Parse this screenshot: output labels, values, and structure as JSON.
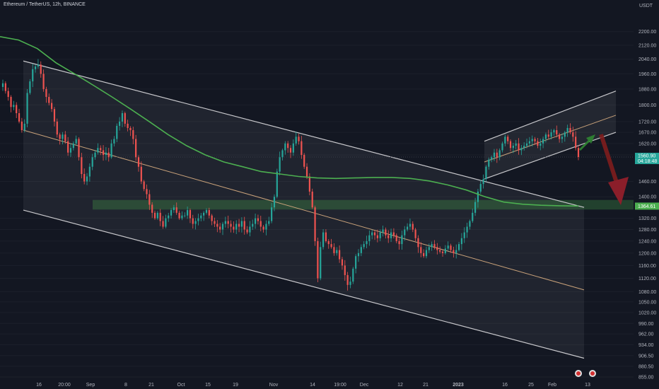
{
  "header": {
    "symbol": "Ethereum / TetherUS, 12h, BINANCE"
  },
  "currency_label": "USDT",
  "chart_data": {
    "type": "candlestick",
    "title": "Ethereum / TetherUS, 12h, BINANCE",
    "y_scale": "log",
    "ylim": [
      855,
      2290
    ],
    "y_ticks": [
      "2200.00",
      "2120.00",
      "2040.00",
      "1960.00",
      "1880.00",
      "1800.00",
      "1720.00",
      "1670.00",
      "1620.00",
      "1570.00",
      "1460.00",
      "1400.00",
      "1320.00",
      "1280.00",
      "1240.00",
      "1200.00",
      "1160.00",
      "1120.00",
      "1080.00",
      "1050.00",
      "1020.00",
      "990.00",
      "962.00",
      "934.00",
      "906.50",
      "880.50",
      "855.00"
    ],
    "x_tick_labels": [
      "16",
      "20:00",
      "Sep",
      "8",
      "21",
      "Oct",
      "15",
      "19",
      "Nov",
      "14",
      "19:00",
      "Dec",
      "12",
      "21",
      "2023",
      "16",
      "25",
      "Feb",
      "13"
    ],
    "price_tags": [
      {
        "label": "1560.90",
        "sublabel": "04:18:48",
        "price": 1560.9,
        "color": "#26a69a"
      },
      {
        "label": "1364.61",
        "price": 1364.61,
        "color": "#4caf50"
      }
    ],
    "series": [
      {
        "name": "ETHUSDT 12h",
        "kind": "candles",
        "start": "2022-08-14",
        "closes": [
          1910,
          1870,
          1840,
          1790,
          1800,
          1760,
          1720,
          1680,
          1710,
          1860,
          1920,
          1985,
          2000,
          2010,
          1960,
          1880,
          1840,
          1810,
          1780,
          1720,
          1660,
          1640,
          1660,
          1630,
          1580,
          1600,
          1620,
          1640,
          1560,
          1490,
          1460,
          1480,
          1520,
          1560,
          1580,
          1600,
          1590,
          1570,
          1580,
          1560,
          1620,
          1640,
          1700,
          1720,
          1760,
          1710,
          1690,
          1680,
          1640,
          1560,
          1520,
          1460,
          1430,
          1410,
          1370,
          1340,
          1320,
          1340,
          1310,
          1290,
          1320,
          1330,
          1350,
          1360,
          1340,
          1320,
          1330,
          1330,
          1350,
          1320,
          1300,
          1310,
          1320,
          1330,
          1340,
          1350,
          1330,
          1310,
          1300,
          1290,
          1280,
          1300,
          1310,
          1300,
          1290,
          1280,
          1300,
          1290,
          1310,
          1280,
          1270,
          1290,
          1300,
          1320,
          1310,
          1290,
          1280,
          1300,
          1310,
          1360,
          1400,
          1500,
          1560,
          1590,
          1620,
          1600,
          1580,
          1620,
          1650,
          1630,
          1570,
          1520,
          1480,
          1420,
          1360,
          1240,
          1120,
          1220,
          1270,
          1240,
          1230,
          1220,
          1200,
          1210,
          1180,
          1160,
          1130,
          1100,
          1110,
          1150,
          1190,
          1200,
          1220,
          1230,
          1240,
          1260,
          1270,
          1260,
          1250,
          1270,
          1280,
          1260,
          1250,
          1270,
          1260,
          1240,
          1230,
          1260,
          1280,
          1290,
          1300,
          1280,
          1250,
          1220,
          1200,
          1190,
          1210,
          1220,
          1230,
          1220,
          1210,
          1205,
          1200,
          1215,
          1225,
          1210,
          1200,
          1210,
          1230,
          1250,
          1270,
          1290,
          1310,
          1340,
          1380,
          1420,
          1450,
          1470,
          1520,
          1550,
          1560,
          1580,
          1560,
          1590,
          1620,
          1650,
          1630,
          1600,
          1610,
          1620,
          1590,
          1600,
          1610,
          1620,
          1630,
          1640,
          1630,
          1610,
          1620,
          1640,
          1660,
          1650,
          1670,
          1680,
          1660,
          1640,
          1650,
          1670,
          1690,
          1670,
          1650,
          1600,
          1561
        ]
      },
      {
        "name": "Moving average",
        "kind": "line",
        "color": "#4caf50",
        "values": [
          2170,
          2150,
          2100,
          2020,
          1960,
          1900,
          1840,
          1780,
          1720,
          1660,
          1610,
          1570,
          1540,
          1520,
          1500,
          1490,
          1480,
          1474,
          1472,
          1474,
          1476,
          1476,
          1472,
          1462,
          1446,
          1426,
          1400,
          1380,
          1372,
          1368,
          1366,
          1365
        ]
      }
    ],
    "annotations": [
      {
        "kind": "descending channel",
        "top_start": 2030,
        "top_end": 1360,
        "mid_start": 1680,
        "mid_end": 1085,
        "bottom_start": 1350,
        "bottom_end": 900
      },
      {
        "kind": "ascending channel",
        "top_start": 1630,
        "top_end": 1870,
        "mid_start": 1540,
        "mid_end": 1750,
        "bottom_start": 1470,
        "bottom_end": 1670
      },
      {
        "kind": "horizontal zone",
        "from": 1352,
        "to": 1388
      },
      {
        "kind": "arrow",
        "direction": "up",
        "color": "#2e7d32"
      },
      {
        "kind": "arrow",
        "direction": "down",
        "color": "#b71c1c"
      }
    ]
  }
}
